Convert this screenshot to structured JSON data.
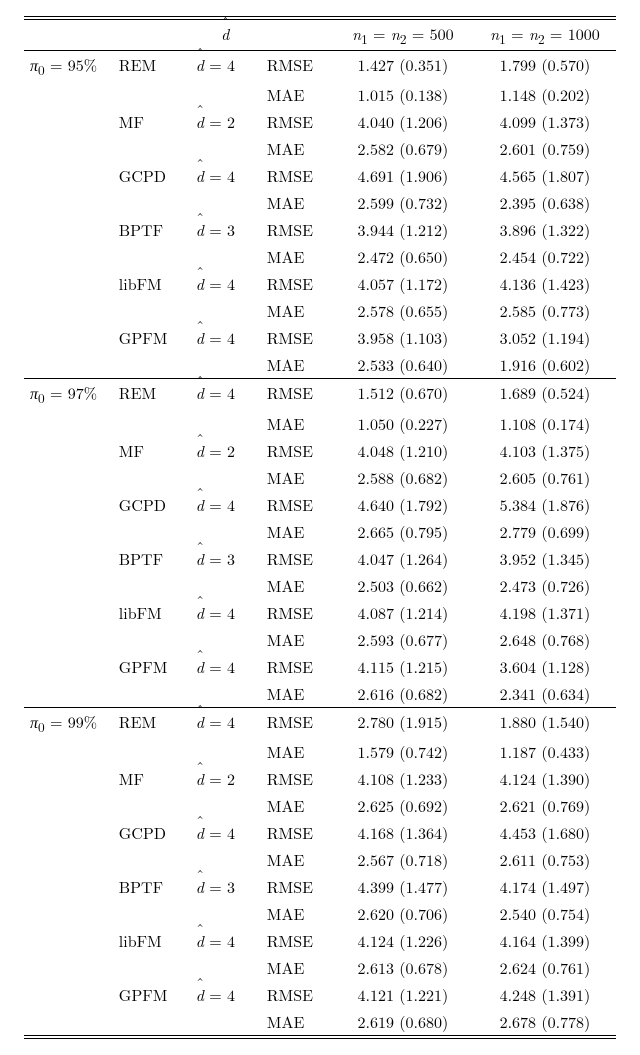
{
  "header": {
    "dhat": "d̂",
    "col500": "n₁ = n₂ = 500",
    "col1000": "n₁ = n₂ = 1000"
  },
  "table": {
    "columns": [
      "pi",
      "method",
      "dhat",
      "metric",
      "v500",
      "v1000"
    ],
    "col_align": [
      "left",
      "left",
      "left",
      "left",
      "center",
      "center"
    ],
    "col_widths_pct": [
      15,
      13,
      12,
      12,
      24,
      24
    ],
    "font_size_pt": 12,
    "background_color": "#ffffff",
    "text_color": "#000000",
    "rule_color": "#000000"
  },
  "blocks": [
    {
      "pi": "π₀ = 95%",
      "methods": [
        {
          "name": "REM",
          "dhat": "d̂ = 4",
          "rows": [
            {
              "metric": "RMSE",
              "v500": "1.427 (0.351)",
              "v1000": "1.799 (0.570)"
            },
            {
              "metric": "MAE",
              "v500": "1.015 (0.138)",
              "v1000": "1.148 (0.202)"
            }
          ]
        },
        {
          "name": "MF",
          "dhat": "d̂ = 2",
          "rows": [
            {
              "metric": "RMSE",
              "v500": "4.040 (1.206)",
              "v1000": "4.099 (1.373)"
            },
            {
              "metric": "MAE",
              "v500": "2.582 (0.679)",
              "v1000": "2.601 (0.759)"
            }
          ]
        },
        {
          "name": "GCPD",
          "dhat": "d̂ = 4",
          "rows": [
            {
              "metric": "RMSE",
              "v500": "4.691 (1.906)",
              "v1000": "4.565 (1.807)"
            },
            {
              "metric": "MAE",
              "v500": "2.599 (0.732)",
              "v1000": "2.395 (0.638)"
            }
          ]
        },
        {
          "name": "BPTF",
          "dhat": "d̂ = 3",
          "rows": [
            {
              "metric": "RMSE",
              "v500": "3.944 (1.212)",
              "v1000": "3.896 (1.322)"
            },
            {
              "metric": "MAE",
              "v500": "2.472 (0.650)",
              "v1000": "2.454 (0.722)"
            }
          ]
        },
        {
          "name": "libFM",
          "dhat": "d̂ = 4",
          "rows": [
            {
              "metric": "RMSE",
              "v500": "4.057 (1.172)",
              "v1000": "4.136 (1.423)"
            },
            {
              "metric": "MAE",
              "v500": "2.578 (0.655)",
              "v1000": "2.585 (0.773)"
            }
          ]
        },
        {
          "name": "GPFM",
          "dhat": "d̂ = 4",
          "rows": [
            {
              "metric": "RMSE",
              "v500": "3.958 (1.103)",
              "v1000": "3.052 (1.194)"
            },
            {
              "metric": "MAE",
              "v500": "2.533 (0.640)",
              "v1000": "1.916 (0.602)"
            }
          ]
        }
      ]
    },
    {
      "pi": "π₀ = 97%",
      "methods": [
        {
          "name": "REM",
          "dhat": "d̂ = 4",
          "rows": [
            {
              "metric": "RMSE",
              "v500": "1.512 (0.670)",
              "v1000": "1.689 (0.524)"
            },
            {
              "metric": "MAE",
              "v500": "1.050 (0.227)",
              "v1000": "1.108 (0.174)"
            }
          ]
        },
        {
          "name": "MF",
          "dhat": "d̂ = 2",
          "rows": [
            {
              "metric": "RMSE",
              "v500": "4.048 (1.210)",
              "v1000": "4.103 (1.375)"
            },
            {
              "metric": "MAE",
              "v500": "2.588 (0.682)",
              "v1000": "2.605 (0.761)"
            }
          ]
        },
        {
          "name": "GCPD",
          "dhat": "d̂ = 4",
          "rows": [
            {
              "metric": "RMSE",
              "v500": "4.640 (1.792)",
              "v1000": "5.384 (1.876)"
            },
            {
              "metric": "MAE",
              "v500": "2.665 (0.795)",
              "v1000": "2.779 (0.699)"
            }
          ]
        },
        {
          "name": "BPTF",
          "dhat": "d̂ = 3",
          "rows": [
            {
              "metric": "RMSE",
              "v500": "4.047 (1.264)",
              "v1000": "3.952 (1.345)"
            },
            {
              "metric": "MAE",
              "v500": "2.503 (0.662)",
              "v1000": "2.473 (0.726)"
            }
          ]
        },
        {
          "name": "libFM",
          "dhat": "d̂ = 4",
          "rows": [
            {
              "metric": "RMSE",
              "v500": "4.087 (1.214)",
              "v1000": "4.198 (1.371)"
            },
            {
              "metric": "MAE",
              "v500": "2.593 (0.677)",
              "v1000": "2.648 (0.768)"
            }
          ]
        },
        {
          "name": "GPFM",
          "dhat": "d̂ = 4",
          "rows": [
            {
              "metric": "RMSE",
              "v500": "4.115 (1.215)",
              "v1000": "3.604 (1.128)"
            },
            {
              "metric": "MAE",
              "v500": "2.616 (0.682)",
              "v1000": "2.341 (0.634)"
            }
          ]
        }
      ]
    },
    {
      "pi": "π₀ = 99%",
      "methods": [
        {
          "name": "REM",
          "dhat": "d̂ = 4",
          "rows": [
            {
              "metric": "RMSE",
              "v500": "2.780 (1.915)",
              "v1000": "1.880 (1.540)"
            },
            {
              "metric": "MAE",
              "v500": "1.579 (0.742)",
              "v1000": "1.187 (0.433)"
            }
          ]
        },
        {
          "name": "MF",
          "dhat": "d̂ = 2",
          "rows": [
            {
              "metric": "RMSE",
              "v500": "4.108 (1.233)",
              "v1000": "4.124 (1.390)"
            },
            {
              "metric": "MAE",
              "v500": "2.625 (0.692)",
              "v1000": "2.621 (0.769)"
            }
          ]
        },
        {
          "name": "GCPD",
          "dhat": "d̂ = 4",
          "rows": [
            {
              "metric": "RMSE",
              "v500": "4.168 (1.364)",
              "v1000": "4.453 (1.680)"
            },
            {
              "metric": "MAE",
              "v500": "2.567 (0.718)",
              "v1000": "2.611 (0.753)"
            }
          ]
        },
        {
          "name": "BPTF",
          "dhat": "d̂ = 3",
          "rows": [
            {
              "metric": "RMSE",
              "v500": "4.399 (1.477)",
              "v1000": "4.174 (1.497)"
            },
            {
              "metric": "MAE",
              "v500": "2.620 (0.706)",
              "v1000": "2.540 (0.754)"
            }
          ]
        },
        {
          "name": "libFM",
          "dhat": "d̂ = 4",
          "rows": [
            {
              "metric": "RMSE",
              "v500": "4.124 (1.226)",
              "v1000": "4.164 (1.399)"
            },
            {
              "metric": "MAE",
              "v500": "2.613 (0.678)",
              "v1000": "2.624 (0.761)"
            }
          ]
        },
        {
          "name": "GPFM",
          "dhat": "d̂ = 4",
          "rows": [
            {
              "metric": "RMSE",
              "v500": "4.121 (1.221)",
              "v1000": "4.248 (1.391)"
            },
            {
              "metric": "MAE",
              "v500": "2.619 (0.680)",
              "v1000": "2.678 (0.778)"
            }
          ]
        }
      ]
    }
  ]
}
